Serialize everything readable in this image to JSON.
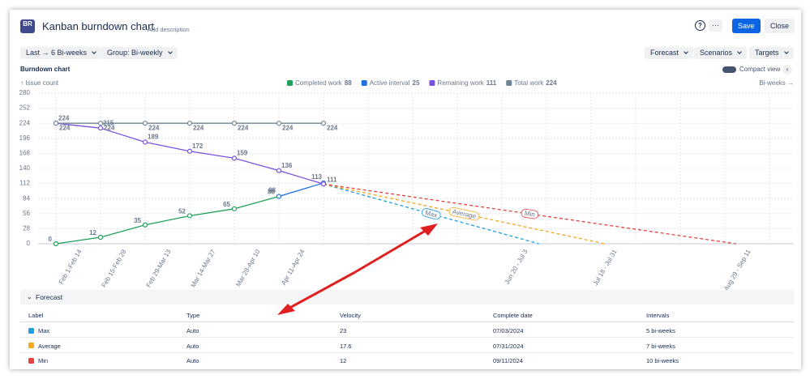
{
  "header": {
    "logo": "BR",
    "title": "Kanban burndown chart",
    "description_link": "Add description",
    "help": "?",
    "more": "···",
    "save": "Save",
    "close": "Close"
  },
  "toolbar": {
    "range": "Last → 6 Bi-weeks",
    "group": "Group: Bi-weekly",
    "menus": [
      "Forecast",
      "Scenarios",
      "Targets"
    ],
    "compact_view": "Compact view"
  },
  "chart_data": {
    "type": "line",
    "title": "Burndown chart",
    "y_label": "↑ Issue count",
    "x_label": "Bi-weeks →",
    "categories": [
      "Feb 1-Feb 14",
      "Feb 15-Feb 28",
      "Feb 29-Mar 13",
      "Mar 14-Mar 27",
      "Mar 28-Apr 10",
      "Apr 11-Apr 24",
      null,
      null,
      null,
      null,
      "Jun 20 - Jul 3",
      null,
      "Jul 18 - Jul 31",
      null,
      null,
      "Aug 29 - Sep 11",
      null
    ],
    "ylim": [
      0,
      280
    ],
    "yticks": [
      0,
      28,
      56,
      84,
      112,
      140,
      168,
      196,
      224,
      252,
      280
    ],
    "grid": true,
    "series": [
      {
        "name": "Completed work",
        "legend_value": 88,
        "color": "#22a05a",
        "values": [
          0,
          12,
          35,
          52,
          65,
          88,
          null,
          null,
          null,
          null,
          null,
          null,
          null,
          null,
          null,
          null,
          null
        ]
      },
      {
        "name": "Active interval",
        "legend_value": 25,
        "color": "#1f6fe0",
        "values": [
          null,
          null,
          null,
          null,
          null,
          88,
          113,
          null,
          null,
          null,
          null,
          null,
          null,
          null,
          null,
          null,
          null
        ]
      },
      {
        "name": "Remaining work",
        "legend_value": 111,
        "color": "#7a52e0",
        "values": [
          224,
          215,
          189,
          172,
          159,
          136,
          111,
          null,
          null,
          null,
          null,
          null,
          null,
          null,
          null,
          null,
          null
        ]
      },
      {
        "name": "Total work",
        "legend_value": 224,
        "color": "#6e8596",
        "values": [
          224,
          224,
          224,
          224,
          224,
          224,
          224,
          null,
          null,
          null,
          null,
          null,
          null,
          null,
          null,
          null,
          null
        ]
      }
    ],
    "forecasts": [
      {
        "name": "Max",
        "color": "#1e9ee0",
        "x": [
          6,
          10.83
        ],
        "values": [
          111,
          0
        ]
      },
      {
        "name": "Average",
        "color": "#f5a623",
        "x": [
          6,
          12.31
        ],
        "values": [
          111,
          0
        ]
      },
      {
        "name": "Min",
        "color": "#e84040",
        "x": [
          6,
          15.25
        ],
        "values": [
          111,
          0
        ]
      }
    ]
  },
  "forecast_table": {
    "title": "Forecast",
    "columns": [
      "Label",
      "Type",
      "Velocity",
      "Complete date",
      "Intervals"
    ],
    "rows": [
      {
        "color": "#1e9ee0",
        "cells": [
          "Max",
          "Auto",
          "23",
          "07/03/2024",
          "5 bi-weeks"
        ]
      },
      {
        "color": "#f5a623",
        "cells": [
          "Average",
          "Auto",
          "17.6",
          "07/31/2024",
          "7 bi-weeks"
        ]
      },
      {
        "color": "#e84040",
        "cells": [
          "Min",
          "Auto",
          "12",
          "09/11/2024",
          "10 bi-weeks"
        ]
      }
    ]
  }
}
